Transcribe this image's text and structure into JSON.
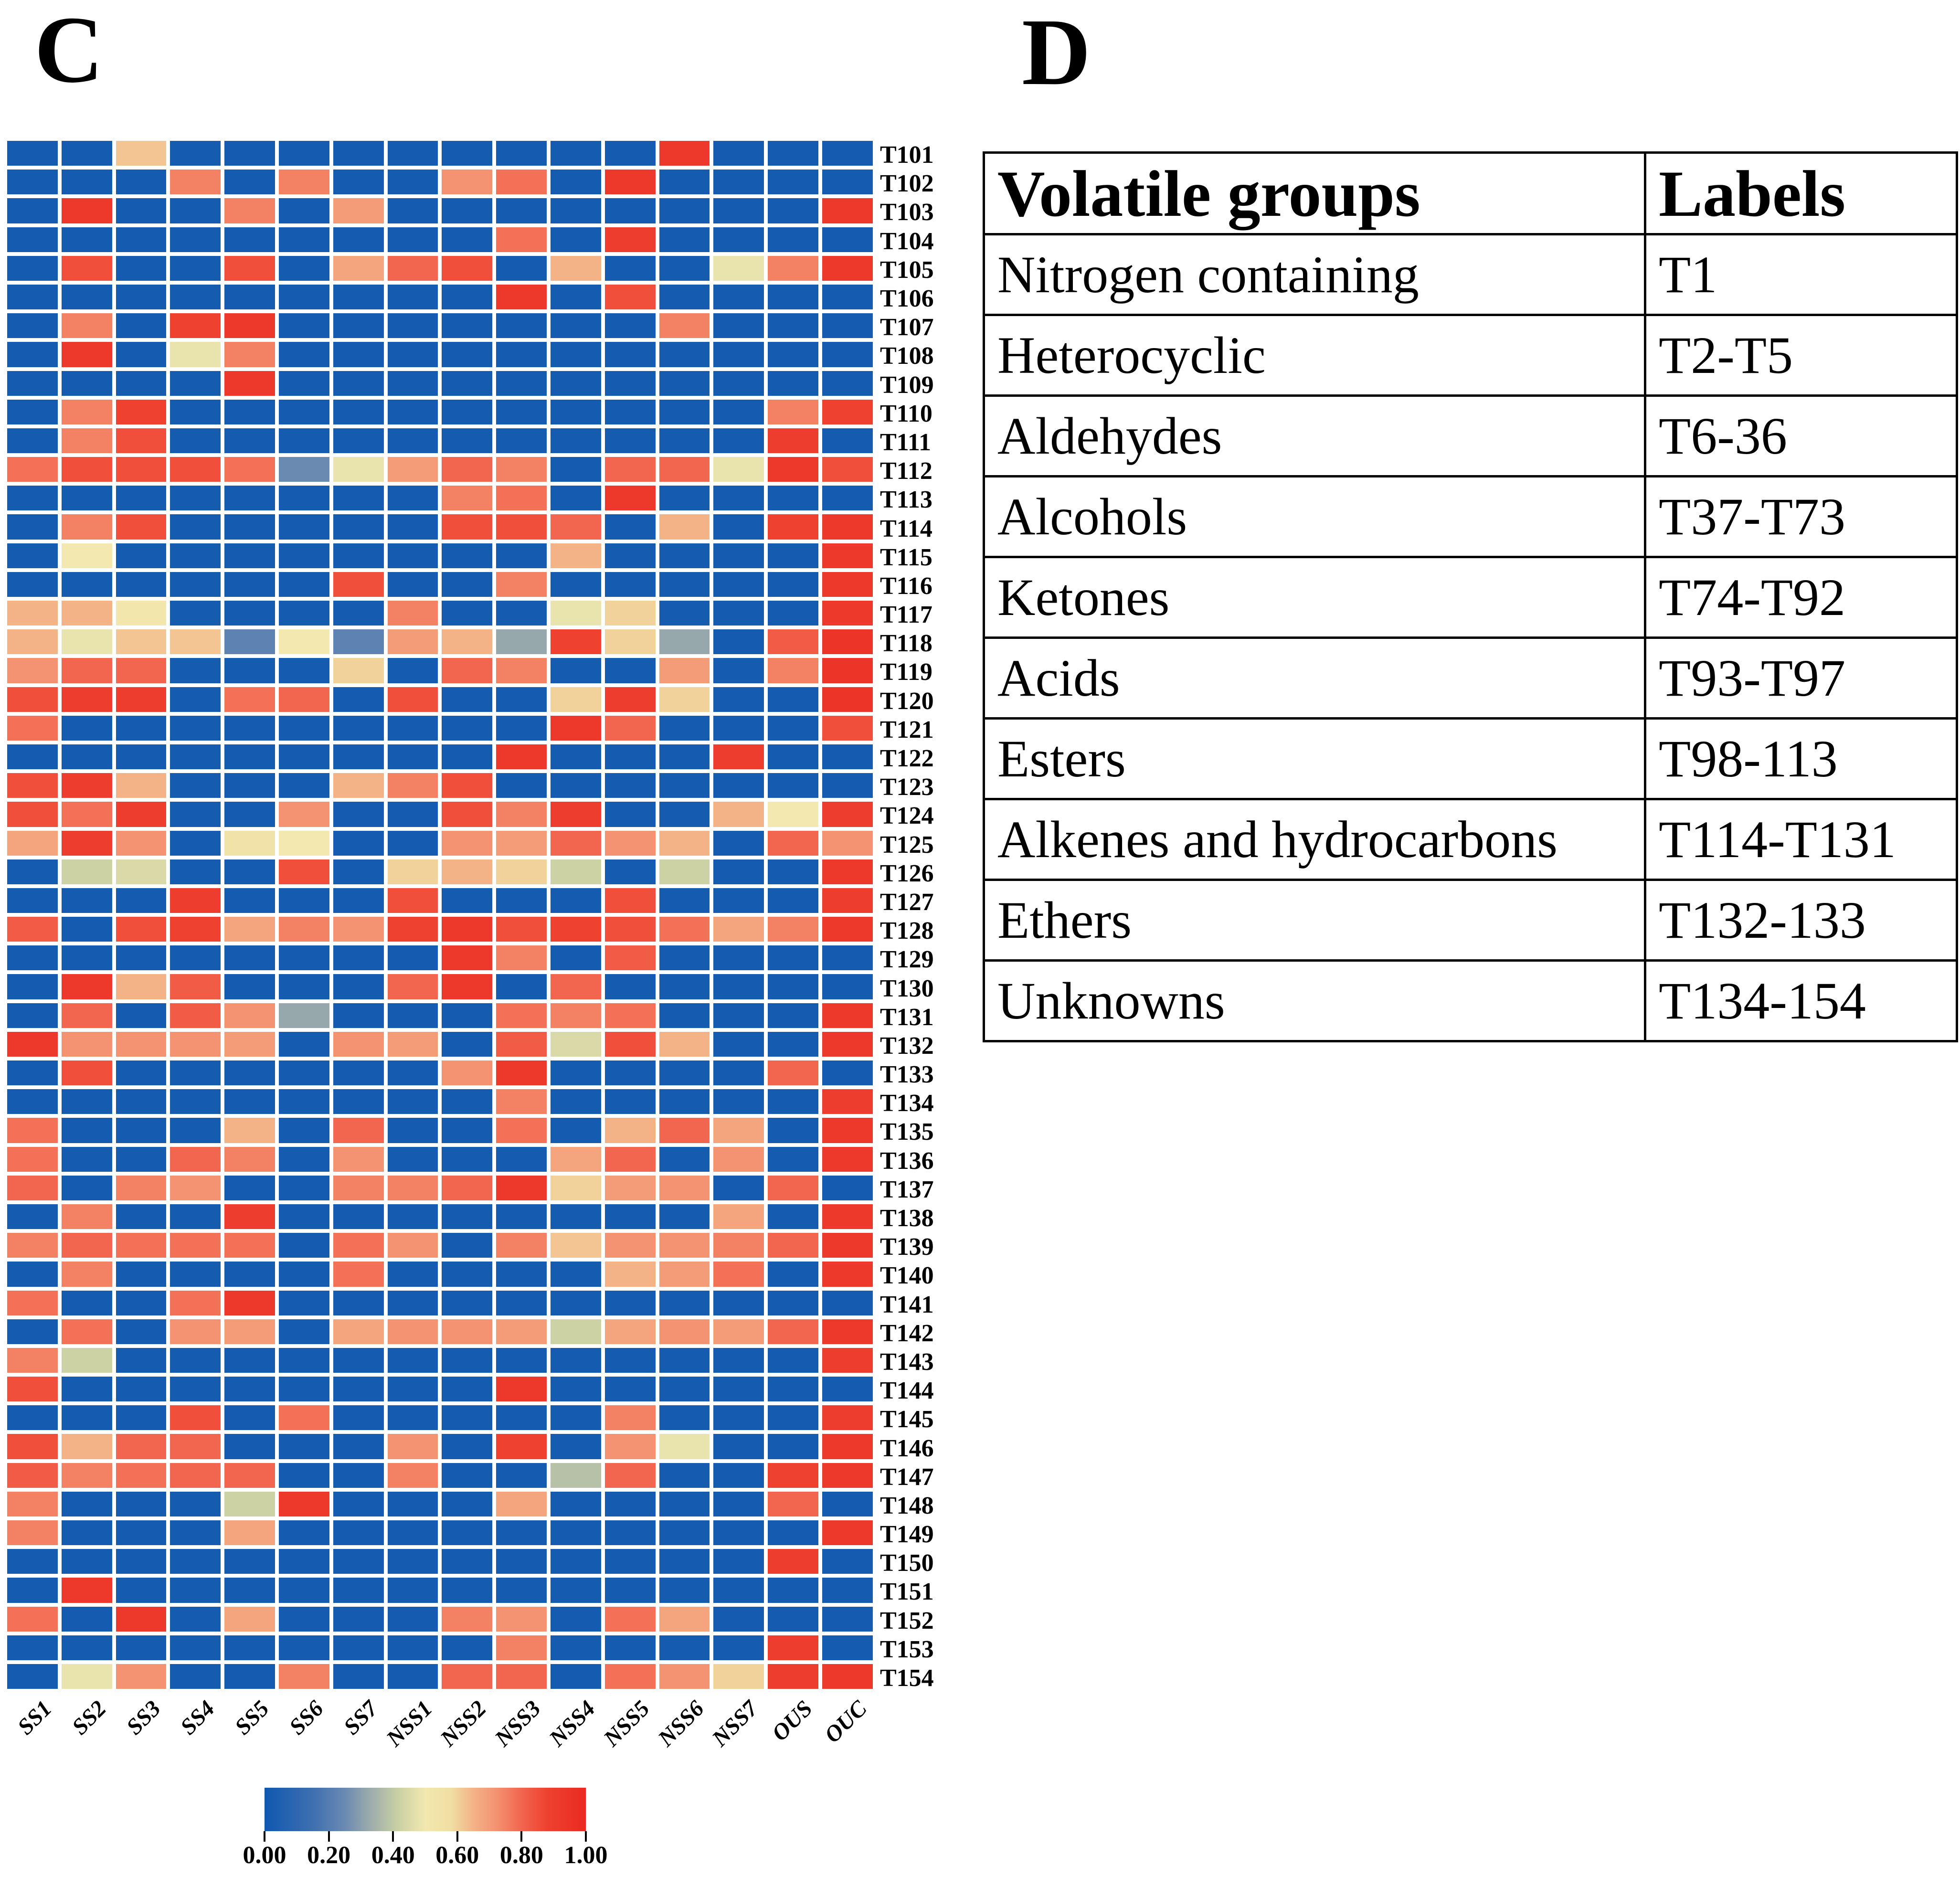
{
  "panels": {
    "c_label": "C",
    "d_label": "D"
  },
  "chart_data": {
    "type": "heatmap",
    "title": "",
    "xlabel": "",
    "ylabel": "",
    "legend_position": "bottom-colorbar",
    "grid": "white-gaps",
    "value_range": [
      0.0,
      1.0
    ],
    "columns": [
      "SS1",
      "SS2",
      "SS3",
      "SS4",
      "SS5",
      "SS6",
      "SS7",
      "NSS1",
      "NSS2",
      "NSS3",
      "NSS4",
      "NSS5",
      "NSS6",
      "NSS7",
      "OUS",
      "OUC"
    ],
    "rows": [
      "T101",
      "T102",
      "T103",
      "T104",
      "T105",
      "T106",
      "T107",
      "T108",
      "T109",
      "T110",
      "T111",
      "T112",
      "T113",
      "T114",
      "T115",
      "T116",
      "T117",
      "T118",
      "T119",
      "T120",
      "T121",
      "T122",
      "T123",
      "T124",
      "T125",
      "T126",
      "T127",
      "T128",
      "T129",
      "T130",
      "T131",
      "T132",
      "T133",
      "T134",
      "T135",
      "T136",
      "T137",
      "T138",
      "T139",
      "T140",
      "T141",
      "T142",
      "T143",
      "T144",
      "T145",
      "T146",
      "T147",
      "T148",
      "T149",
      "T150",
      "T151",
      "T152",
      "T153",
      "T154"
    ],
    "values": [
      [
        0.02,
        0.02,
        0.62,
        0.02,
        0.02,
        0.02,
        0.02,
        0.02,
        0.02,
        0.02,
        0.02,
        0.02,
        0.92,
        0.02,
        0.02,
        0.02
      ],
      [
        0.02,
        0.02,
        0.02,
        0.75,
        0.02,
        0.75,
        0.02,
        0.02,
        0.72,
        0.78,
        0.02,
        0.92,
        0.02,
        0.02,
        0.02,
        0.02
      ],
      [
        0.02,
        0.92,
        0.02,
        0.02,
        0.75,
        0.02,
        0.7,
        0.02,
        0.02,
        0.02,
        0.02,
        0.02,
        0.02,
        0.02,
        0.02,
        0.92
      ],
      [
        0.02,
        0.02,
        0.02,
        0.02,
        0.02,
        0.02,
        0.02,
        0.02,
        0.02,
        0.78,
        0.02,
        0.9,
        0.02,
        0.02,
        0.02,
        0.02
      ],
      [
        0.02,
        0.85,
        0.02,
        0.02,
        0.85,
        0.02,
        0.68,
        0.8,
        0.85,
        0.02,
        0.65,
        0.02,
        0.02,
        0.48,
        0.75,
        0.92
      ],
      [
        0.02,
        0.02,
        0.02,
        0.02,
        0.02,
        0.02,
        0.02,
        0.02,
        0.02,
        0.92,
        0.02,
        0.85,
        0.02,
        0.02,
        0.02,
        0.02
      ],
      [
        0.02,
        0.75,
        0.02,
        0.88,
        0.92,
        0.02,
        0.02,
        0.02,
        0.02,
        0.02,
        0.02,
        0.02,
        0.75,
        0.02,
        0.02,
        0.02
      ],
      [
        0.02,
        0.92,
        0.02,
        0.48,
        0.75,
        0.02,
        0.02,
        0.02,
        0.02,
        0.02,
        0.02,
        0.02,
        0.02,
        0.02,
        0.02,
        0.02
      ],
      [
        0.02,
        0.02,
        0.02,
        0.02,
        0.92,
        0.02,
        0.02,
        0.02,
        0.02,
        0.02,
        0.02,
        0.02,
        0.02,
        0.02,
        0.02,
        0.02
      ],
      [
        0.02,
        0.75,
        0.88,
        0.02,
        0.02,
        0.02,
        0.02,
        0.02,
        0.02,
        0.02,
        0.02,
        0.02,
        0.02,
        0.02,
        0.75,
        0.88
      ],
      [
        0.02,
        0.75,
        0.85,
        0.02,
        0.02,
        0.02,
        0.02,
        0.02,
        0.02,
        0.02,
        0.02,
        0.02,
        0.02,
        0.02,
        0.9,
        0.02
      ],
      [
        0.78,
        0.85,
        0.85,
        0.85,
        0.78,
        0.25,
        0.48,
        0.7,
        0.8,
        0.75,
        0.02,
        0.8,
        0.8,
        0.48,
        0.92,
        0.85
      ],
      [
        0.02,
        0.02,
        0.02,
        0.02,
        0.02,
        0.02,
        0.02,
        0.02,
        0.75,
        0.78,
        0.02,
        0.92,
        0.02,
        0.02,
        0.02,
        0.02
      ],
      [
        0.02,
        0.75,
        0.85,
        0.02,
        0.02,
        0.02,
        0.02,
        0.02,
        0.85,
        0.85,
        0.8,
        0.02,
        0.65,
        0.02,
        0.88,
        0.92
      ],
      [
        0.02,
        0.5,
        0.02,
        0.02,
        0.02,
        0.02,
        0.02,
        0.02,
        0.02,
        0.02,
        0.65,
        0.02,
        0.02,
        0.02,
        0.02,
        0.92
      ],
      [
        0.02,
        0.02,
        0.02,
        0.02,
        0.02,
        0.02,
        0.85,
        0.02,
        0.02,
        0.75,
        0.02,
        0.02,
        0.02,
        0.02,
        0.02,
        0.92
      ],
      [
        0.65,
        0.65,
        0.52,
        0.02,
        0.02,
        0.02,
        0.02,
        0.75,
        0.02,
        0.02,
        0.48,
        0.6,
        0.02,
        0.02,
        0.02,
        0.92
      ],
      [
        0.65,
        0.48,
        0.62,
        0.62,
        0.22,
        0.5,
        0.22,
        0.7,
        0.65,
        0.32,
        0.88,
        0.6,
        0.32,
        0.02,
        0.82,
        0.95
      ],
      [
        0.72,
        0.8,
        0.8,
        0.02,
        0.02,
        0.02,
        0.6,
        0.02,
        0.8,
        0.75,
        0.02,
        0.02,
        0.7,
        0.02,
        0.75,
        0.95
      ],
      [
        0.85,
        0.9,
        0.9,
        0.02,
        0.78,
        0.8,
        0.02,
        0.85,
        0.02,
        0.02,
        0.6,
        0.9,
        0.6,
        0.02,
        0.02,
        0.95
      ],
      [
        0.78,
        0.02,
        0.02,
        0.02,
        0.02,
        0.02,
        0.02,
        0.02,
        0.02,
        0.02,
        0.92,
        0.8,
        0.02,
        0.02,
        0.02,
        0.85
      ],
      [
        0.02,
        0.02,
        0.02,
        0.02,
        0.02,
        0.02,
        0.02,
        0.02,
        0.02,
        0.92,
        0.02,
        0.02,
        0.02,
        0.9,
        0.02,
        0.02
      ],
      [
        0.85,
        0.9,
        0.65,
        0.02,
        0.02,
        0.02,
        0.65,
        0.75,
        0.85,
        0.02,
        0.02,
        0.02,
        0.02,
        0.02,
        0.02,
        0.02
      ],
      [
        0.85,
        0.78,
        0.9,
        0.02,
        0.02,
        0.72,
        0.02,
        0.02,
        0.85,
        0.75,
        0.9,
        0.02,
        0.02,
        0.65,
        0.5,
        0.9
      ],
      [
        0.68,
        0.9,
        0.72,
        0.02,
        0.55,
        0.5,
        0.02,
        0.02,
        0.72,
        0.7,
        0.8,
        0.72,
        0.65,
        0.02,
        0.8,
        0.72
      ],
      [
        0.02,
        0.42,
        0.45,
        0.02,
        0.02,
        0.85,
        0.02,
        0.6,
        0.65,
        0.6,
        0.42,
        0.02,
        0.42,
        0.02,
        0.02,
        0.92
      ],
      [
        0.02,
        0.02,
        0.02,
        0.9,
        0.02,
        0.02,
        0.02,
        0.85,
        0.02,
        0.02,
        0.02,
        0.85,
        0.02,
        0.02,
        0.02,
        0.9
      ],
      [
        0.82,
        0.02,
        0.85,
        0.88,
        0.68,
        0.75,
        0.72,
        0.88,
        0.92,
        0.85,
        0.88,
        0.85,
        0.78,
        0.68,
        0.75,
        0.92
      ],
      [
        0.02,
        0.02,
        0.02,
        0.02,
        0.02,
        0.02,
        0.02,
        0.02,
        0.92,
        0.75,
        0.02,
        0.82,
        0.02,
        0.02,
        0.02,
        0.02
      ],
      [
        0.02,
        0.92,
        0.65,
        0.82,
        0.02,
        0.02,
        0.02,
        0.8,
        0.92,
        0.02,
        0.8,
        0.02,
        0.02,
        0.02,
        0.02,
        0.02
      ],
      [
        0.02,
        0.8,
        0.02,
        0.82,
        0.72,
        0.32,
        0.02,
        0.02,
        0.02,
        0.78,
        0.75,
        0.78,
        0.02,
        0.02,
        0.02,
        0.92
      ],
      [
        0.92,
        0.72,
        0.72,
        0.72,
        0.7,
        0.02,
        0.72,
        0.7,
        0.02,
        0.82,
        0.45,
        0.85,
        0.65,
        0.02,
        0.02,
        0.92
      ],
      [
        0.02,
        0.85,
        0.02,
        0.02,
        0.02,
        0.02,
        0.02,
        0.02,
        0.72,
        0.92,
        0.02,
        0.02,
        0.02,
        0.02,
        0.8,
        0.02
      ],
      [
        0.02,
        0.02,
        0.02,
        0.02,
        0.02,
        0.02,
        0.02,
        0.02,
        0.02,
        0.75,
        0.02,
        0.02,
        0.02,
        0.02,
        0.02,
        0.9
      ],
      [
        0.78,
        0.02,
        0.02,
        0.02,
        0.65,
        0.02,
        0.8,
        0.02,
        0.02,
        0.78,
        0.02,
        0.65,
        0.8,
        0.68,
        0.02,
        0.92
      ],
      [
        0.78,
        0.02,
        0.02,
        0.8,
        0.75,
        0.02,
        0.72,
        0.02,
        0.02,
        0.02,
        0.68,
        0.8,
        0.02,
        0.72,
        0.02,
        0.92
      ],
      [
        0.8,
        0.02,
        0.75,
        0.72,
        0.02,
        0.02,
        0.75,
        0.75,
        0.8,
        0.92,
        0.6,
        0.7,
        0.72,
        0.02,
        0.8,
        0.02
      ],
      [
        0.02,
        0.75,
        0.02,
        0.02,
        0.9,
        0.02,
        0.02,
        0.02,
        0.02,
        0.02,
        0.02,
        0.02,
        0.02,
        0.68,
        0.02,
        0.92
      ],
      [
        0.75,
        0.8,
        0.78,
        0.78,
        0.78,
        0.02,
        0.78,
        0.72,
        0.02,
        0.75,
        0.62,
        0.72,
        0.72,
        0.75,
        0.8,
        0.92
      ],
      [
        0.02,
        0.75,
        0.02,
        0.02,
        0.02,
        0.02,
        0.78,
        0.02,
        0.02,
        0.02,
        0.02,
        0.65,
        0.7,
        0.78,
        0.02,
        0.92
      ],
      [
        0.78,
        0.02,
        0.02,
        0.78,
        0.92,
        0.02,
        0.02,
        0.02,
        0.02,
        0.02,
        0.02,
        0.02,
        0.02,
        0.02,
        0.02,
        0.02
      ],
      [
        0.02,
        0.78,
        0.02,
        0.72,
        0.7,
        0.02,
        0.68,
        0.72,
        0.72,
        0.7,
        0.42,
        0.68,
        0.72,
        0.7,
        0.8,
        0.92
      ],
      [
        0.75,
        0.42,
        0.02,
        0.02,
        0.02,
        0.02,
        0.02,
        0.02,
        0.02,
        0.02,
        0.02,
        0.02,
        0.02,
        0.02,
        0.02,
        0.9
      ],
      [
        0.85,
        0.02,
        0.02,
        0.02,
        0.02,
        0.02,
        0.02,
        0.02,
        0.02,
        0.92,
        0.02,
        0.02,
        0.02,
        0.02,
        0.02,
        0.02
      ],
      [
        0.02,
        0.02,
        0.02,
        0.85,
        0.02,
        0.78,
        0.02,
        0.02,
        0.02,
        0.02,
        0.02,
        0.75,
        0.02,
        0.02,
        0.02,
        0.9
      ],
      [
        0.85,
        0.65,
        0.8,
        0.8,
        0.02,
        0.02,
        0.02,
        0.72,
        0.02,
        0.88,
        0.02,
        0.72,
        0.48,
        0.02,
        0.02,
        0.92
      ],
      [
        0.82,
        0.75,
        0.78,
        0.8,
        0.8,
        0.02,
        0.02,
        0.75,
        0.02,
        0.02,
        0.38,
        0.8,
        0.02,
        0.02,
        0.88,
        0.92
      ],
      [
        0.75,
        0.02,
        0.02,
        0.02,
        0.42,
        0.92,
        0.02,
        0.02,
        0.02,
        0.68,
        0.02,
        0.02,
        0.02,
        0.02,
        0.8,
        0.02
      ],
      [
        0.75,
        0.02,
        0.02,
        0.02,
        0.68,
        0.02,
        0.02,
        0.02,
        0.02,
        0.02,
        0.02,
        0.02,
        0.02,
        0.02,
        0.02,
        0.92
      ],
      [
        0.02,
        0.02,
        0.02,
        0.02,
        0.02,
        0.02,
        0.02,
        0.02,
        0.02,
        0.02,
        0.02,
        0.02,
        0.02,
        0.02,
        0.9,
        0.02
      ],
      [
        0.02,
        0.92,
        0.02,
        0.02,
        0.02,
        0.02,
        0.02,
        0.02,
        0.02,
        0.02,
        0.02,
        0.02,
        0.02,
        0.02,
        0.02,
        0.02
      ],
      [
        0.78,
        0.02,
        0.92,
        0.02,
        0.68,
        0.02,
        0.02,
        0.02,
        0.75,
        0.72,
        0.02,
        0.78,
        0.68,
        0.02,
        0.02,
        0.02
      ],
      [
        0.02,
        0.02,
        0.02,
        0.02,
        0.02,
        0.02,
        0.02,
        0.02,
        0.02,
        0.75,
        0.02,
        0.02,
        0.02,
        0.02,
        0.9,
        0.02
      ],
      [
        0.02,
        0.48,
        0.72,
        0.02,
        0.02,
        0.75,
        0.02,
        0.02,
        0.8,
        0.8,
        0.02,
        0.78,
        0.72,
        0.6,
        0.9,
        0.92
      ]
    ],
    "colorbar": {
      "tick_labels": [
        "0.00",
        "0.20",
        "0.40",
        "0.60",
        "0.80",
        "1.00"
      ],
      "tick_values": [
        0.0,
        0.2,
        0.4,
        0.6,
        0.8,
        1.0
      ]
    },
    "colormap_stops": [
      [
        0.0,
        "#0F58B0"
      ],
      [
        0.15,
        "#3E6FB0"
      ],
      [
        0.25,
        "#6B8AB2"
      ],
      [
        0.32,
        "#97A8AC"
      ],
      [
        0.42,
        "#CCD2A4"
      ],
      [
        0.5,
        "#F2E8B0"
      ],
      [
        0.58,
        "#F0DFA2"
      ],
      [
        0.65,
        "#F4B287"
      ],
      [
        0.72,
        "#F49371"
      ],
      [
        0.8,
        "#F2654E"
      ],
      [
        0.88,
        "#EE4130"
      ],
      [
        1.0,
        "#EA2A22"
      ]
    ]
  },
  "table": {
    "headers": [
      "Volatile groups",
      "Labels"
    ],
    "rows": [
      [
        "Nitrogen containing",
        "T1"
      ],
      [
        "Heterocyclic",
        "T2-T5"
      ],
      [
        "Aldehydes",
        "T6-36"
      ],
      [
        "Alcohols",
        "T37-T73"
      ],
      [
        "Ketones",
        "T74-T92"
      ],
      [
        "Acids",
        "T93-T97"
      ],
      [
        "Esters",
        "T98-113"
      ],
      [
        "Alkenes and hydrocarbons",
        "T114-T131"
      ],
      [
        "Ethers",
        "T132-133"
      ],
      [
        "Unknowns",
        "T134-154"
      ]
    ]
  }
}
